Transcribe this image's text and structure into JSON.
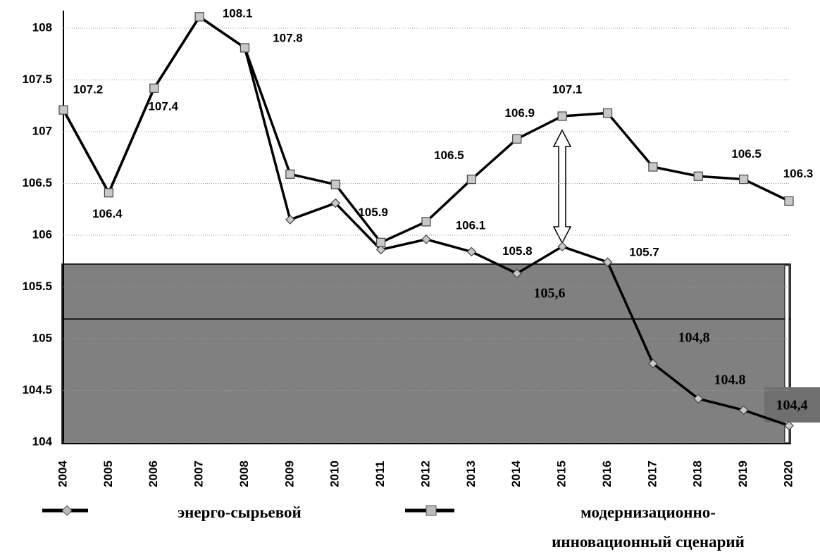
{
  "chart_data": {
    "type": "line",
    "categories": [
      "2004",
      "2005",
      "2006",
      "2007",
      "2008",
      "2009",
      "2010",
      "2011",
      "2012",
      "2013",
      "2014",
      "2015",
      "2016",
      "2017",
      "2018",
      "2019",
      "2020"
    ],
    "series": [
      {
        "name": "энерго-сырьевой",
        "color": "#000000",
        "marker": "diamond",
        "values": [
          107.21,
          106.41,
          107.42,
          108.11,
          107.81,
          106.15,
          106.31,
          105.86,
          105.96,
          105.84,
          105.63,
          105.89,
          105.74,
          104.76,
          104.42,
          104.31,
          104.16
        ],
        "value_labels": [
          null,
          null,
          null,
          null,
          null,
          null,
          null,
          null,
          null,
          "105.8",
          null,
          null,
          "105.7",
          null,
          null,
          null,
          null
        ]
      },
      {
        "name": "модернизационно-\nинновационный сценарий",
        "color": "#000000",
        "marker": "square",
        "values": [
          107.21,
          106.41,
          107.42,
          108.11,
          107.81,
          106.59,
          106.49,
          105.93,
          106.13,
          106.54,
          106.93,
          107.15,
          107.18,
          106.66,
          106.57,
          106.54,
          106.33
        ],
        "value_labels": [
          "107.2",
          "106.4",
          "107.4",
          "108.1",
          "107.8",
          null,
          null,
          "105.9",
          "106.1",
          "106.5",
          "106.9",
          "107.1",
          null,
          null,
          null,
          "106.5",
          "106.3"
        ]
      }
    ],
    "annotations": [
      "105,6",
      "104,8",
      "104.8",
      "104,4"
    ],
    "ylim": [
      104,
      108
    ],
    "yticks": [
      104,
      104.5,
      105,
      105.5,
      106,
      106.5,
      107,
      107.5,
      108
    ],
    "grid": true
  }
}
